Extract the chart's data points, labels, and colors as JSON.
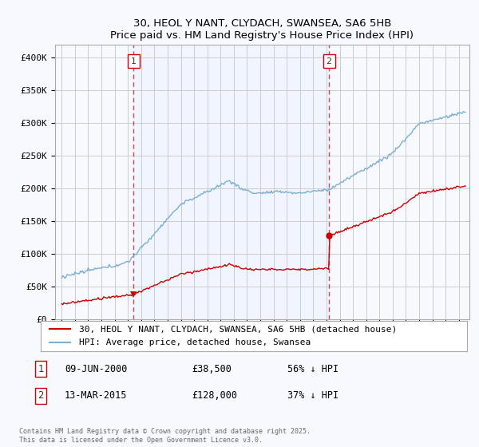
{
  "title": "30, HEOL Y NANT, CLYDACH, SWANSEA, SA6 5HB",
  "subtitle": "Price paid vs. HM Land Registry's House Price Index (HPI)",
  "ylim": [
    0,
    420000
  ],
  "yticks": [
    0,
    50000,
    100000,
    150000,
    200000,
    250000,
    300000,
    350000,
    400000
  ],
  "ytick_labels": [
    "£0",
    "£50K",
    "£100K",
    "£150K",
    "£200K",
    "£250K",
    "£300K",
    "£350K",
    "£400K"
  ],
  "line_color_red": "#cc0000",
  "line_color_blue": "#7bafd4",
  "fill_color": "#ddeeff",
  "vline_color": "#cc0000",
  "background_color": "#f8f8ff",
  "grid_color": "#cccccc",
  "sale1_date_num": 2000.44,
  "sale1_price": 38500,
  "sale1_label": "1",
  "sale1_date_str": "09-JUN-2000",
  "sale1_price_str": "£38,500",
  "sale1_hpi_str": "56% ↓ HPI",
  "sale2_date_num": 2015.19,
  "sale2_price": 128000,
  "sale2_label": "2",
  "sale2_date_str": "13-MAR-2015",
  "sale2_price_str": "£128,000",
  "sale2_hpi_str": "37% ↓ HPI",
  "legend_label_red": "30, HEOL Y NANT, CLYDACH, SWANSEA, SA6 5HB (detached house)",
  "legend_label_blue": "HPI: Average price, detached house, Swansea",
  "footnote": "Contains HM Land Registry data © Crown copyright and database right 2025.\nThis data is licensed under the Open Government Licence v3.0.",
  "xlim_start": 1994.5,
  "xlim_end": 2025.8
}
